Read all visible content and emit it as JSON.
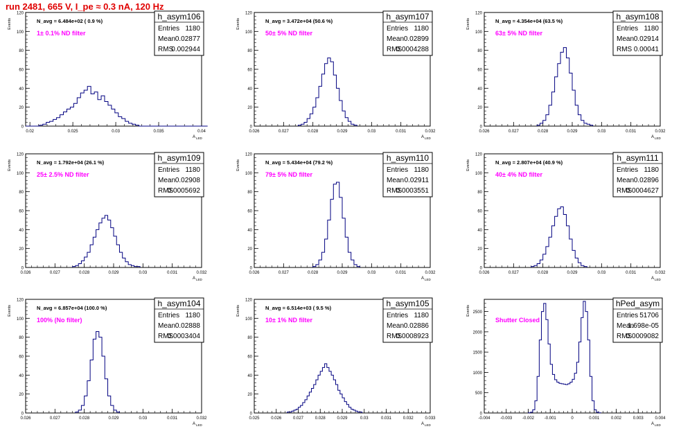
{
  "page_title": "run 2481,   665 V, I_pe ≈ 0.3 nA, 120 Hz",
  "colors": {
    "title": "#e00000",
    "filter_label": "#ff00ff",
    "histogram": "#000080",
    "frame": "#000000"
  },
  "chart_data": [
    {
      "type": "histogram",
      "name": "h_asym106",
      "ylabel": "Events",
      "xlabel_main": "A",
      "xlabel_sub": "LED",
      "xlim": [
        0.0195,
        0.04
      ],
      "ylim": [
        0,
        120
      ],
      "x_ticks": [
        "0.02",
        "0.025",
        "0.03",
        "0.035",
        "0.04"
      ],
      "x_tick_values": [
        0.02,
        0.025,
        0.03,
        0.035,
        0.04
      ],
      "y_ticks": [
        "0",
        "20",
        "40",
        "60",
        "80",
        "100",
        "120"
      ],
      "y_tick_values": [
        0,
        20,
        40,
        60,
        80,
        100,
        120
      ],
      "navg": "N_avg = 6.484e+02 ( 0.9 %)",
      "filter_label": "1± 0.1% ND filter",
      "stats": {
        "Entries": "1180",
        "Mean": "0.02877",
        "RMS": "0.002944"
      },
      "bins": {
        "x0": 0.0195,
        "width": 0.0004,
        "values": [
          0,
          0,
          0,
          0,
          1,
          2,
          4,
          5,
          7,
          9,
          12,
          15,
          18,
          20,
          24,
          30,
          35,
          38,
          42,
          34,
          36,
          28,
          32,
          26,
          22,
          18,
          14,
          10,
          8,
          5,
          3,
          2,
          1,
          0,
          0,
          0,
          0,
          0,
          0,
          0,
          0,
          0,
          0,
          0,
          0,
          0,
          0,
          0,
          0,
          0,
          0,
          0,
          0
        ]
      }
    },
    {
      "type": "histogram",
      "name": "h_asym107",
      "ylabel": "Events",
      "xlabel_main": "A",
      "xlabel_sub": "LED",
      "xlim": [
        0.026,
        0.032
      ],
      "ylim": [
        0,
        120
      ],
      "x_ticks": [
        "0.026",
        "0.027",
        "0.028",
        "0.029",
        "0.03",
        "0.031",
        "0.032"
      ],
      "x_tick_values": [
        0.026,
        0.027,
        0.028,
        0.029,
        0.03,
        0.031,
        0.032
      ],
      "y_ticks": [
        "0",
        "20",
        "40",
        "60",
        "80",
        "100",
        "120"
      ],
      "y_tick_values": [
        0,
        20,
        40,
        60,
        80,
        100,
        120
      ],
      "navg": "N_avg = 3.472e+04 (50.6 %)",
      "filter_label": "50± 5% ND filter",
      "stats": {
        "Entries": "1180",
        "Mean": "0.02899",
        "RMS": "0.0004288"
      },
      "bins": {
        "x0": 0.0275,
        "width": 0.0001,
        "values": [
          1,
          2,
          4,
          8,
          13,
          20,
          30,
          42,
          55,
          66,
          72,
          68,
          54,
          40,
          27,
          16,
          9,
          5,
          2,
          1
        ]
      }
    },
    {
      "type": "histogram",
      "name": "h_asym108",
      "ylabel": "Events",
      "xlabel_main": "A",
      "xlabel_sub": "LED",
      "xlim": [
        0.026,
        0.032
      ],
      "ylim": [
        0,
        120
      ],
      "x_ticks": [
        "0.026",
        "0.027",
        "0.028",
        "0.029",
        "0.03",
        "0.031",
        "0.032"
      ],
      "x_tick_values": [
        0.026,
        0.027,
        0.028,
        0.029,
        0.03,
        0.031,
        0.032
      ],
      "y_ticks": [
        "0",
        "20",
        "40",
        "60",
        "80",
        "100",
        "120"
      ],
      "y_tick_values": [
        0,
        20,
        40,
        60,
        80,
        100,
        120
      ],
      "navg": "N_avg = 4.354e+04 (63.5 %)",
      "filter_label": "63± 5% ND filter",
      "stats": {
        "Entries": "1180",
        "Mean": "0.02914",
        "RMS": "0.00041"
      },
      "bins": {
        "x0": 0.0278,
        "width": 0.0001,
        "values": [
          1,
          3,
          6,
          12,
          22,
          36,
          52,
          66,
          78,
          83,
          72,
          56,
          38,
          22,
          12,
          6,
          3,
          2,
          1
        ]
      }
    },
    {
      "type": "histogram",
      "name": "h_asym109",
      "ylabel": "Events",
      "xlabel_main": "A",
      "xlabel_sub": "LED",
      "xlim": [
        0.026,
        0.032
      ],
      "ylim": [
        0,
        120
      ],
      "x_ticks": [
        "0.026",
        "0.027",
        "0.028",
        "0.029",
        "0.03",
        "0.031",
        "0.032"
      ],
      "x_tick_values": [
        0.026,
        0.027,
        0.028,
        0.029,
        0.03,
        0.031,
        0.032
      ],
      "y_ticks": [
        "0",
        "20",
        "40",
        "60",
        "80",
        "100",
        "120"
      ],
      "y_tick_values": [
        0,
        20,
        40,
        60,
        80,
        100,
        120
      ],
      "navg": "N_avg = 1.792e+04 (26.1 %)",
      "filter_label": "25± 2.5% ND filter",
      "stats": {
        "Entries": "1180",
        "Mean": "0.02908",
        "RMS": "0.0005692"
      },
      "bins": {
        "x0": 0.0276,
        "width": 0.0001,
        "values": [
          1,
          2,
          4,
          7,
          11,
          16,
          24,
          32,
          40,
          47,
          52,
          55,
          50,
          42,
          33,
          24,
          16,
          10,
          6,
          3,
          2,
          1,
          1
        ]
      }
    },
    {
      "type": "histogram",
      "name": "h_asym110",
      "ylabel": "Events",
      "xlabel_main": "A",
      "xlabel_sub": "LED",
      "xlim": [
        0.026,
        0.032
      ],
      "ylim": [
        0,
        120
      ],
      "x_ticks": [
        "0.026",
        "0.027",
        "0.028",
        "0.029",
        "0.03",
        "0.031",
        "0.032"
      ],
      "x_tick_values": [
        0.026,
        0.027,
        0.028,
        0.029,
        0.03,
        0.031,
        0.032
      ],
      "y_ticks": [
        "0",
        "20",
        "40",
        "60",
        "80",
        "100",
        "120"
      ],
      "y_tick_values": [
        0,
        20,
        40,
        60,
        80,
        100,
        120
      ],
      "navg": "N_avg = 5.434e+04 (79.2 %)",
      "filter_label": "79± 5% ND filter",
      "stats": {
        "Entries": "1180",
        "Mean": "0.02911",
        "RMS": "0.0003551"
      },
      "bins": {
        "x0": 0.028,
        "width": 0.0001,
        "values": [
          1,
          3,
          8,
          16,
          30,
          50,
          72,
          88,
          90,
          74,
          52,
          32,
          16,
          8,
          3,
          1
        ]
      }
    },
    {
      "type": "histogram",
      "name": "h_asym111",
      "ylabel": "Events",
      "xlabel_main": "A",
      "xlabel_sub": "LED",
      "xlim": [
        0.026,
        0.032
      ],
      "ylim": [
        0,
        120
      ],
      "x_ticks": [
        "0.026",
        "0.027",
        "0.028",
        "0.029",
        "0.03",
        "0.031",
        "0.032"
      ],
      "x_tick_values": [
        0.026,
        0.027,
        0.028,
        0.029,
        0.03,
        0.031,
        0.032
      ],
      "y_ticks": [
        "0",
        "20",
        "40",
        "60",
        "80",
        "100",
        "120"
      ],
      "y_tick_values": [
        0,
        20,
        40,
        60,
        80,
        100,
        120
      ],
      "navg": "N_avg = 2.807e+04 (40.9 %)",
      "filter_label": "40± 4% ND filter",
      "stats": {
        "Entries": "1180",
        "Mean": "0.02896",
        "RMS": "0.0004627"
      },
      "bins": {
        "x0": 0.0276,
        "width": 0.0001,
        "values": [
          1,
          2,
          4,
          8,
          14,
          22,
          32,
          44,
          54,
          62,
          64,
          56,
          44,
          30,
          18,
          10,
          5,
          2,
          1
        ]
      }
    },
    {
      "type": "histogram",
      "name": "h_asym104",
      "ylabel": "Events",
      "xlabel_main": "A",
      "xlabel_sub": "LED",
      "xlim": [
        0.026,
        0.032
      ],
      "ylim": [
        0,
        120
      ],
      "x_ticks": [
        "0.026",
        "0.027",
        "0.028",
        "0.029",
        "0.03",
        "0.031",
        "0.032"
      ],
      "x_tick_values": [
        0.026,
        0.027,
        0.028,
        0.029,
        0.03,
        0.031,
        0.032
      ],
      "y_ticks": [
        "0",
        "20",
        "40",
        "60",
        "80",
        "100",
        "120"
      ],
      "y_tick_values": [
        0,
        20,
        40,
        60,
        80,
        100,
        120
      ],
      "navg": "N_avg = 6.857e+04 (100.0 %)",
      "filter_label": "100% (No filter)",
      "stats": {
        "Entries": "1180",
        "Mean": "0.02888",
        "RMS": "0.0003404"
      },
      "bins": {
        "x0": 0.0277,
        "width": 0.0001,
        "values": [
          1,
          3,
          8,
          18,
          34,
          56,
          78,
          86,
          80,
          60,
          36,
          18,
          8,
          3,
          1
        ]
      }
    },
    {
      "type": "histogram",
      "name": "h_asym105",
      "ylabel": "Events",
      "xlabel_main": "A",
      "xlabel_sub": "LED",
      "xlim": [
        0.025,
        0.033
      ],
      "ylim": [
        0,
        120
      ],
      "x_ticks": [
        "0.025",
        "0.026",
        "0.027",
        "0.028",
        "0.029",
        "0.03",
        "0.031",
        "0.032",
        "0.033"
      ],
      "x_tick_values": [
        0.025,
        0.026,
        0.027,
        0.028,
        0.029,
        0.03,
        0.031,
        0.032,
        0.033
      ],
      "y_ticks": [
        "0",
        "20",
        "40",
        "60",
        "80",
        "100",
        "120"
      ],
      "y_tick_values": [
        0,
        20,
        40,
        60,
        80,
        100,
        120
      ],
      "navg": "N_avg = 6.514e+03 ( 9.5 %)",
      "filter_label": "10± 1% ND filter",
      "stats": {
        "Entries": "1180",
        "Mean": "0.02886",
        "RMS": "0.0008923"
      },
      "bins": {
        "x0": 0.0265,
        "width": 0.0001,
        "values": [
          1,
          1,
          2,
          3,
          4,
          6,
          8,
          11,
          14,
          18,
          22,
          26,
          30,
          35,
          40,
          44,
          48,
          52,
          48,
          44,
          40,
          35,
          30,
          24,
          20,
          16,
          12,
          9,
          6,
          4,
          3,
          2,
          1,
          1
        ]
      }
    },
    {
      "type": "histogram",
      "name": "hPed_asym",
      "ylabel": "Events",
      "xlabel_main": "A",
      "xlabel_sub": "LED",
      "xlim": [
        -0.004,
        0.004
      ],
      "ylim": [
        0,
        2800
      ],
      "x_ticks": [
        "-0.004",
        "-0.003",
        "-0.002",
        "-0.001",
        "0",
        "0.001",
        "0.002",
        "0.003",
        "0.004"
      ],
      "x_tick_values": [
        -0.004,
        -0.003,
        -0.002,
        -0.001,
        0,
        0.001,
        0.002,
        0.003,
        0.004
      ],
      "y_ticks": [
        "0",
        "500",
        "1000",
        "1500",
        "2000",
        "2500"
      ],
      "y_tick_values": [
        0,
        500,
        1000,
        1500,
        2000,
        2500
      ],
      "navg": "",
      "filter_label": "Shutter Closed",
      "stats": {
        "Entries": "51706",
        "Mean": "1.698e-05",
        "RMS": "0.0009082"
      },
      "bins": {
        "x0": -0.002,
        "width": 0.0001,
        "values": [
          5,
          20,
          80,
          300,
          900,
          1800,
          2500,
          2700,
          2300,
          1700,
          1200,
          950,
          820,
          760,
          730,
          720,
          710,
          700,
          720,
          760,
          830,
          980,
          1250,
          1750,
          2350,
          2750,
          2500,
          1800,
          900,
          300,
          80,
          20,
          5
        ]
      }
    }
  ]
}
